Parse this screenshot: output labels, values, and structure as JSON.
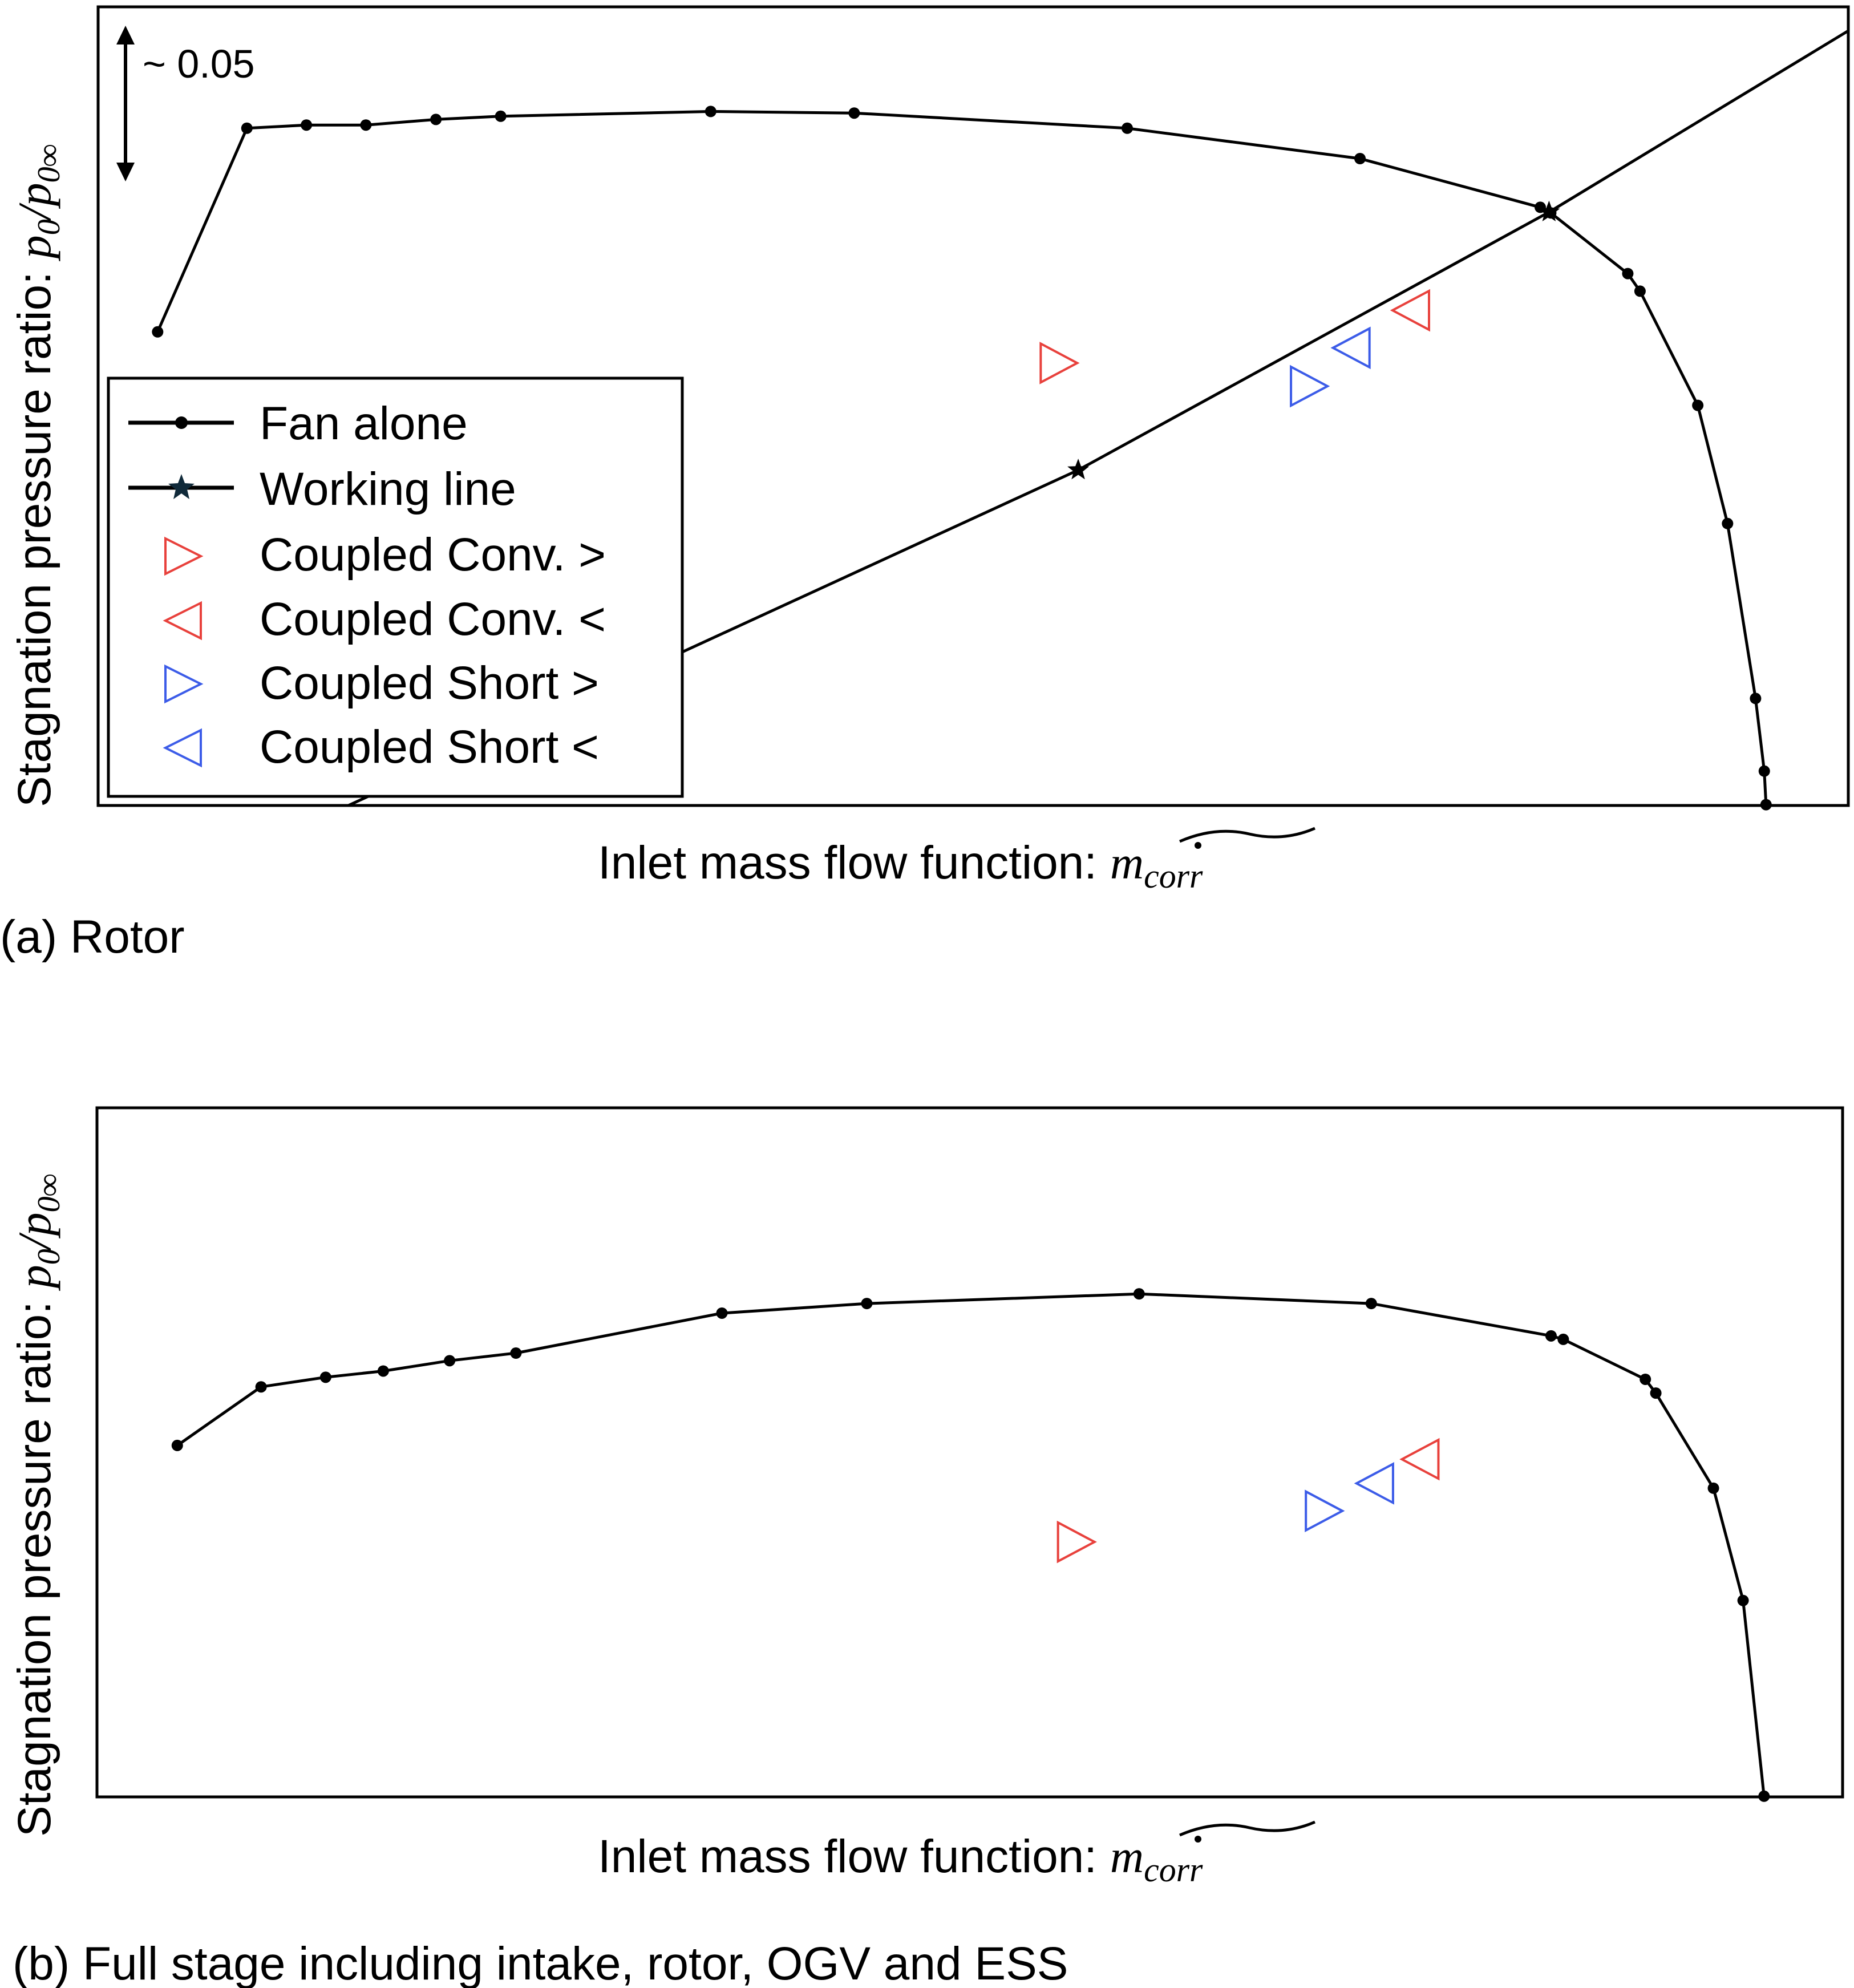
{
  "colors": {
    "line": "#000000",
    "conv": "#e8413c",
    "short": "#3c5ce8"
  },
  "chart_data": [
    {
      "panel": "(a)",
      "type": "line",
      "caption": "(a) Rotor",
      "xlabel_text": "Inlet mass flow function: ",
      "xlabel_symbol": "m",
      "xlabel_subscript": "corr",
      "ylabel_text": "Stagnation pressure ratio: ",
      "ylabel_num": "p",
      "ylabel_num_sub": "0",
      "ylabel_den": "/p",
      "ylabel_den_sub": "0∞",
      "scale_annotation": "~ 0.05",
      "xlim": [
        0,
        1
      ],
      "ylim": [
        0,
        1
      ],
      "grid": false,
      "legend_position": "lower-left",
      "legend": [
        {
          "label": "Fan alone",
          "marker": "dot-line"
        },
        {
          "label": "Working line",
          "marker": "star-line"
        },
        {
          "label": "Coupled Conv. >",
          "marker": "triangle-right",
          "color": "conv"
        },
        {
          "label": "Coupled Conv. <",
          "marker": "triangle-left",
          "color": "conv"
        },
        {
          "label": "Coupled Short >",
          "marker": "triangle-right",
          "color": "short"
        },
        {
          "label": "Coupled Short <",
          "marker": "triangle-left",
          "color": "short"
        }
      ],
      "series": [
        {
          "name": "Fan alone",
          "marker": "dot",
          "points": [
            [
              0.034,
              0.593
            ],
            [
              0.085,
              0.848
            ],
            [
              0.119,
              0.852
            ],
            [
              0.153,
              0.852
            ],
            [
              0.193,
              0.859
            ],
            [
              0.23,
              0.863
            ],
            [
              0.35,
              0.869
            ],
            [
              0.432,
              0.867
            ],
            [
              0.588,
              0.848
            ],
            [
              0.721,
              0.81
            ],
            [
              0.824,
              0.749
            ],
            [
              0.83,
              0.742
            ],
            [
              0.874,
              0.666
            ],
            [
              0.881,
              0.644
            ],
            [
              0.914,
              0.501
            ],
            [
              0.931,
              0.353
            ],
            [
              0.947,
              0.134
            ],
            [
              0.952,
              0.043
            ],
            [
              0.953,
              0.001
            ]
          ]
        },
        {
          "name": "Working line",
          "marker": "star",
          "points": [
            [
              0.143,
              0.0
            ],
            [
              0.56,
              0.42
            ],
            [
              0.829,
              0.743
            ],
            [
              1.0,
              0.97
            ]
          ],
          "marked": [
            [
              0.56,
              0.42
            ],
            [
              0.829,
              0.743
            ]
          ]
        },
        {
          "name": "Coupled Conv. >",
          "marker": "triangle-right",
          "color": "conv",
          "points": [
            [
              0.549,
              0.554
            ]
          ]
        },
        {
          "name": "Coupled Conv. <",
          "marker": "triangle-left",
          "color": "conv",
          "points": [
            [
              0.75,
              0.62
            ]
          ]
        },
        {
          "name": "Coupled Short >",
          "marker": "triangle-right",
          "color": "short",
          "points": [
            [
              0.692,
              0.525
            ]
          ]
        },
        {
          "name": "Coupled Short <",
          "marker": "triangle-left",
          "color": "short",
          "points": [
            [
              0.716,
              0.573
            ]
          ]
        }
      ]
    },
    {
      "panel": "(b)",
      "type": "line",
      "caption": "(b) Full stage including intake, rotor, OGV and ESS",
      "xlabel_text": "Inlet mass flow function: ",
      "xlabel_symbol": "m",
      "xlabel_subscript": "corr",
      "ylabel_text": "Stagnation pressure ratio: ",
      "ylabel_num": "p",
      "ylabel_num_sub": "0",
      "ylabel_den": "/p",
      "ylabel_den_sub": "0∞",
      "xlim": [
        0,
        1
      ],
      "ylim": [
        0,
        1
      ],
      "grid": false,
      "series": [
        {
          "name": "Fan alone",
          "marker": "dot",
          "points": [
            [
              0.046,
              0.51
            ],
            [
              0.094,
              0.595
            ],
            [
              0.131,
              0.609
            ],
            [
              0.164,
              0.618
            ],
            [
              0.202,
              0.633
            ],
            [
              0.24,
              0.644
            ],
            [
              0.358,
              0.702
            ],
            [
              0.441,
              0.716
            ],
            [
              0.597,
              0.73
            ],
            [
              0.73,
              0.716
            ],
            [
              0.833,
              0.669
            ],
            [
              0.84,
              0.664
            ],
            [
              0.887,
              0.606
            ],
            [
              0.893,
              0.586
            ],
            [
              0.926,
              0.448
            ],
            [
              0.943,
              0.285
            ],
            [
              0.955,
              0.001
            ]
          ]
        },
        {
          "name": "Coupled Conv. >",
          "marker": "triangle-right",
          "color": "conv",
          "points": [
            [
              0.561,
              0.37
            ]
          ]
        },
        {
          "name": "Coupled Conv. <",
          "marker": "triangle-left",
          "color": "conv",
          "points": [
            [
              0.758,
              0.49
            ]
          ]
        },
        {
          "name": "Coupled Short >",
          "marker": "triangle-right",
          "color": "short",
          "points": [
            [
              0.703,
              0.415
            ]
          ]
        },
        {
          "name": "Coupled Short <",
          "marker": "triangle-left",
          "color": "short",
          "points": [
            [
              0.732,
              0.455
            ]
          ]
        }
      ]
    }
  ]
}
